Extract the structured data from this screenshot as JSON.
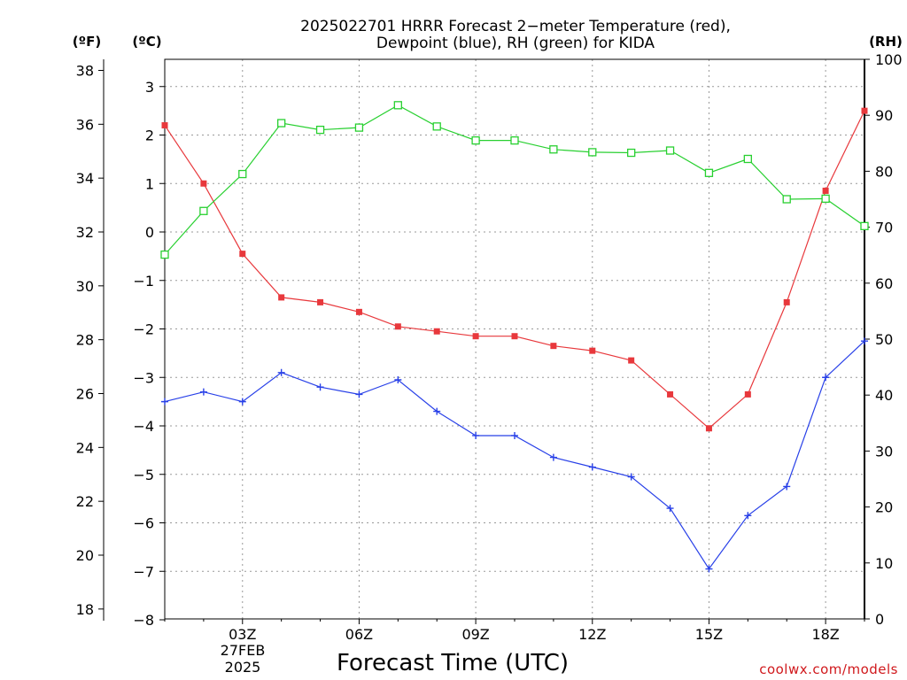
{
  "chart_data": {
    "type": "line",
    "title_line1": "2025022701 HRRR Forecast 2−meter Temperature (red),",
    "title_line2": "Dewpoint (blue), RH (green) for KIDA",
    "xlabel": "Forecast Time (UTC)",
    "date_line1": "27FEB",
    "date_line2": "2025",
    "credit": "coolwx.com/models",
    "unit_f": "(ºF)",
    "unit_c": "(ºC)",
    "unit_rh": "(RH)",
    "x_hours": [
      1,
      2,
      3,
      4,
      5,
      6,
      7,
      8,
      9,
      10,
      11,
      12,
      13,
      14,
      15,
      16,
      17,
      18,
      19
    ],
    "x_ticks": [
      {
        "hour": 3,
        "label": "03Z"
      },
      {
        "hour": 6,
        "label": "06Z"
      },
      {
        "hour": 9,
        "label": "09Z"
      },
      {
        "hour": 12,
        "label": "12Z"
      },
      {
        "hour": 15,
        "label": "15Z"
      },
      {
        "hour": 18,
        "label": "18Z"
      }
    ],
    "xlim": [
      1,
      19
    ],
    "ylim_c": [
      -8,
      3.6
    ],
    "yticks_c": [
      "3",
      "2",
      "1",
      "0",
      "−1",
      "−2",
      "−3",
      "−4",
      "−5",
      "−6",
      "−7",
      "−8"
    ],
    "yticks_c_values": [
      3,
      2,
      1,
      0,
      -1,
      -2,
      -3,
      -4,
      -5,
      -6,
      -7,
      -8
    ],
    "yticks_f": [
      "38",
      "36",
      "34",
      "32",
      "30",
      "28",
      "26",
      "24",
      "22",
      "20",
      "18"
    ],
    "yticks_f_values": [
      38,
      36,
      34,
      32,
      30,
      28,
      26,
      24,
      22,
      20,
      18
    ],
    "ylim_rh": [
      0,
      100
    ],
    "yticks_rh": [
      "100",
      "90",
      "80",
      "70",
      "60",
      "50",
      "40",
      "30",
      "20",
      "10",
      "0"
    ],
    "yticks_rh_values": [
      100,
      90,
      80,
      70,
      60,
      50,
      40,
      30,
      20,
      10,
      0
    ],
    "grid": true,
    "series": [
      {
        "name": "Temperature (red)",
        "axis": "C",
        "color": "#e8383c",
        "marker": "filled-square",
        "values": [
          2.2,
          1.0,
          -0.45,
          -1.35,
          -1.45,
          -1.65,
          -1.95,
          -2.05,
          -2.15,
          -2.15,
          -2.35,
          -2.45,
          -2.65,
          -3.35,
          -4.05,
          -3.35,
          -1.45,
          0.85,
          2.5
        ]
      },
      {
        "name": "Dewpoint (blue)",
        "axis": "C",
        "color": "#2840e8",
        "marker": "plus",
        "values": [
          -3.5,
          -3.3,
          -3.5,
          -2.9,
          -3.2,
          -3.35,
          -3.05,
          -3.7,
          -4.2,
          -4.2,
          -4.65,
          -4.85,
          -5.05,
          -5.7,
          -6.95,
          -5.85,
          -5.25,
          -3.0,
          -2.25
        ]
      },
      {
        "name": "RH (green)",
        "axis": "RH",
        "color": "#28d030",
        "marker": "open-square",
        "values": [
          65.1,
          72.9,
          79.5,
          88.6,
          87.4,
          87.8,
          91.8,
          88.0,
          85.5,
          85.5,
          83.9,
          83.4,
          83.3,
          83.7,
          79.7,
          82.2,
          75.0,
          75.1,
          70.2
        ]
      }
    ]
  }
}
